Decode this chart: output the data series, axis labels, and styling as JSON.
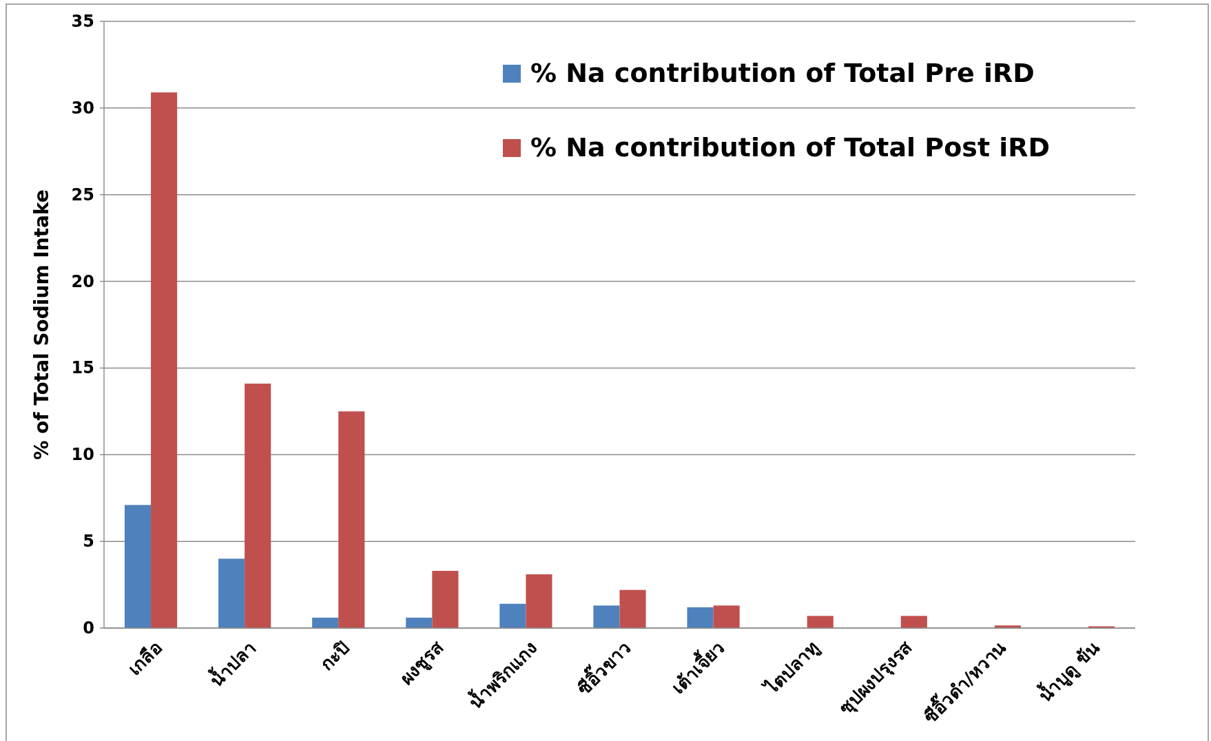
{
  "chart_data": {
    "type": "bar",
    "ylabel": "% of Total Sodium Intake",
    "categories": [
      "เกลือ",
      "น้ำปลา",
      "กะปิ",
      "ผงชูรส",
      "น้ำพริกแกง",
      "ซีอิ๊วขาว",
      "เต้าเจี้ยว",
      "ไตปลาทู",
      "ซุปผงปรุงรส",
      "ซีอิ๊วดำ/หวาน",
      "น้ำบูดู ข้น"
    ],
    "series": [
      {
        "name": "% Na contribution of Total Pre iRD",
        "color": "#4f81bd",
        "values": [
          7.1,
          4.0,
          0.6,
          0.6,
          1.4,
          1.3,
          1.2,
          0,
          0,
          0,
          0
        ]
      },
      {
        "name": "% Na contribution of Total Post iRD",
        "color": "#c0504d",
        "values": [
          30.9,
          14.1,
          12.5,
          3.3,
          3.1,
          2.2,
          1.3,
          0.7,
          0.7,
          0.15,
          0.1
        ]
      }
    ],
    "ylim": [
      0,
      35
    ],
    "yticks": [
      0,
      5,
      10,
      15,
      20,
      25,
      30,
      35
    ],
    "grid": "y",
    "legend": "top right"
  }
}
